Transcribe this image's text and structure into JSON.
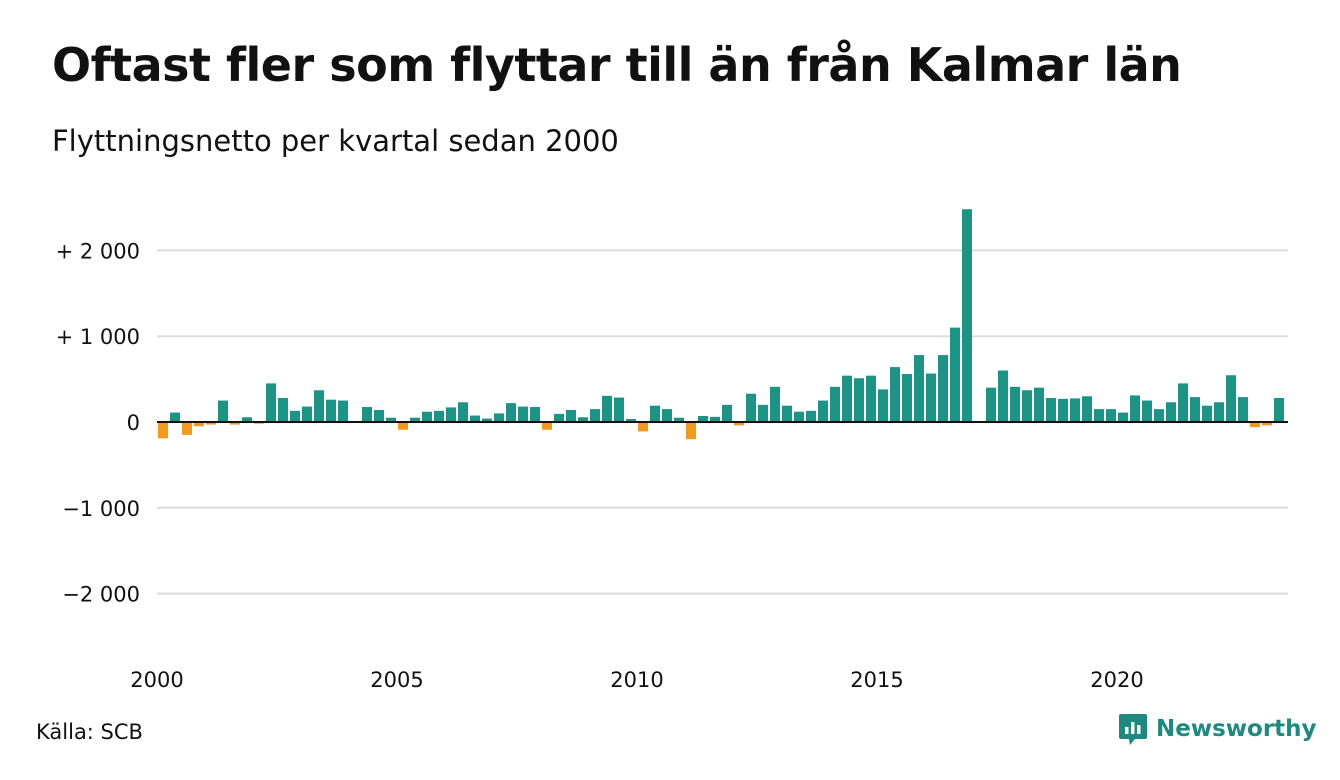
{
  "title": "Oftast fler som flyttar till än från Kalmar län",
  "subtitle": "Flyttningsnetto per kvartal sedan 2000",
  "source": "Källa: SCB",
  "brand": {
    "name": "Newsworthy",
    "icon": "newsworthy-logo-icon"
  },
  "colors": {
    "positive": "#1c9485",
    "negative": "#f39a1e",
    "grid": "#dddddd",
    "zero": "#111111",
    "brand": "#1e8a7f"
  },
  "chart_data": {
    "type": "bar",
    "title": "Oftast fler som flyttar till än från Kalmar län",
    "subtitle": "Flyttningsnetto per kvartal sedan 2000",
    "xlabel": "",
    "ylabel": "",
    "ylim": [
      -2500,
      2500
    ],
    "grid": true,
    "yticks": [
      {
        "value": 2000,
        "label": "+ 2 000"
      },
      {
        "value": 1000,
        "label": "+ 1 000"
      },
      {
        "value": 0,
        "label": "0"
      },
      {
        "value": -1000,
        "label": "−1 000"
      },
      {
        "value": -2000,
        "label": "−2 000"
      }
    ],
    "xticks": [
      {
        "year": 2000,
        "label": "2000"
      },
      {
        "year": 2005,
        "label": "2005"
      },
      {
        "year": 2010,
        "label": "2010"
      },
      {
        "year": 2015,
        "label": "2015"
      },
      {
        "year": 2020,
        "label": "2020"
      }
    ],
    "start_year": 2000,
    "series": [
      {
        "values": [
          -190,
          110,
          -150,
          -50,
          -30,
          250,
          -30,
          55,
          -20,
          450,
          280,
          130,
          180,
          370,
          260,
          250,
          -10,
          175,
          140,
          50,
          -90,
          50,
          120,
          130,
          170,
          230,
          75,
          40,
          100,
          220,
          180,
          175,
          -90,
          95,
          140,
          55,
          150,
          305,
          285,
          35,
          -110,
          190,
          150,
          50,
          -200,
          70,
          60,
          200,
          -40,
          330,
          200,
          410,
          190,
          120,
          130,
          250,
          410,
          540,
          510,
          540,
          380,
          640,
          560,
          780,
          565,
          780,
          1100,
          2480,
          0,
          400,
          600,
          410,
          370,
          400,
          280,
          270,
          275,
          300,
          150,
          150,
          110,
          310,
          250,
          150,
          230,
          450,
          290,
          190,
          230,
          545,
          290,
          -60,
          -40,
          280
        ]
      }
    ]
  }
}
